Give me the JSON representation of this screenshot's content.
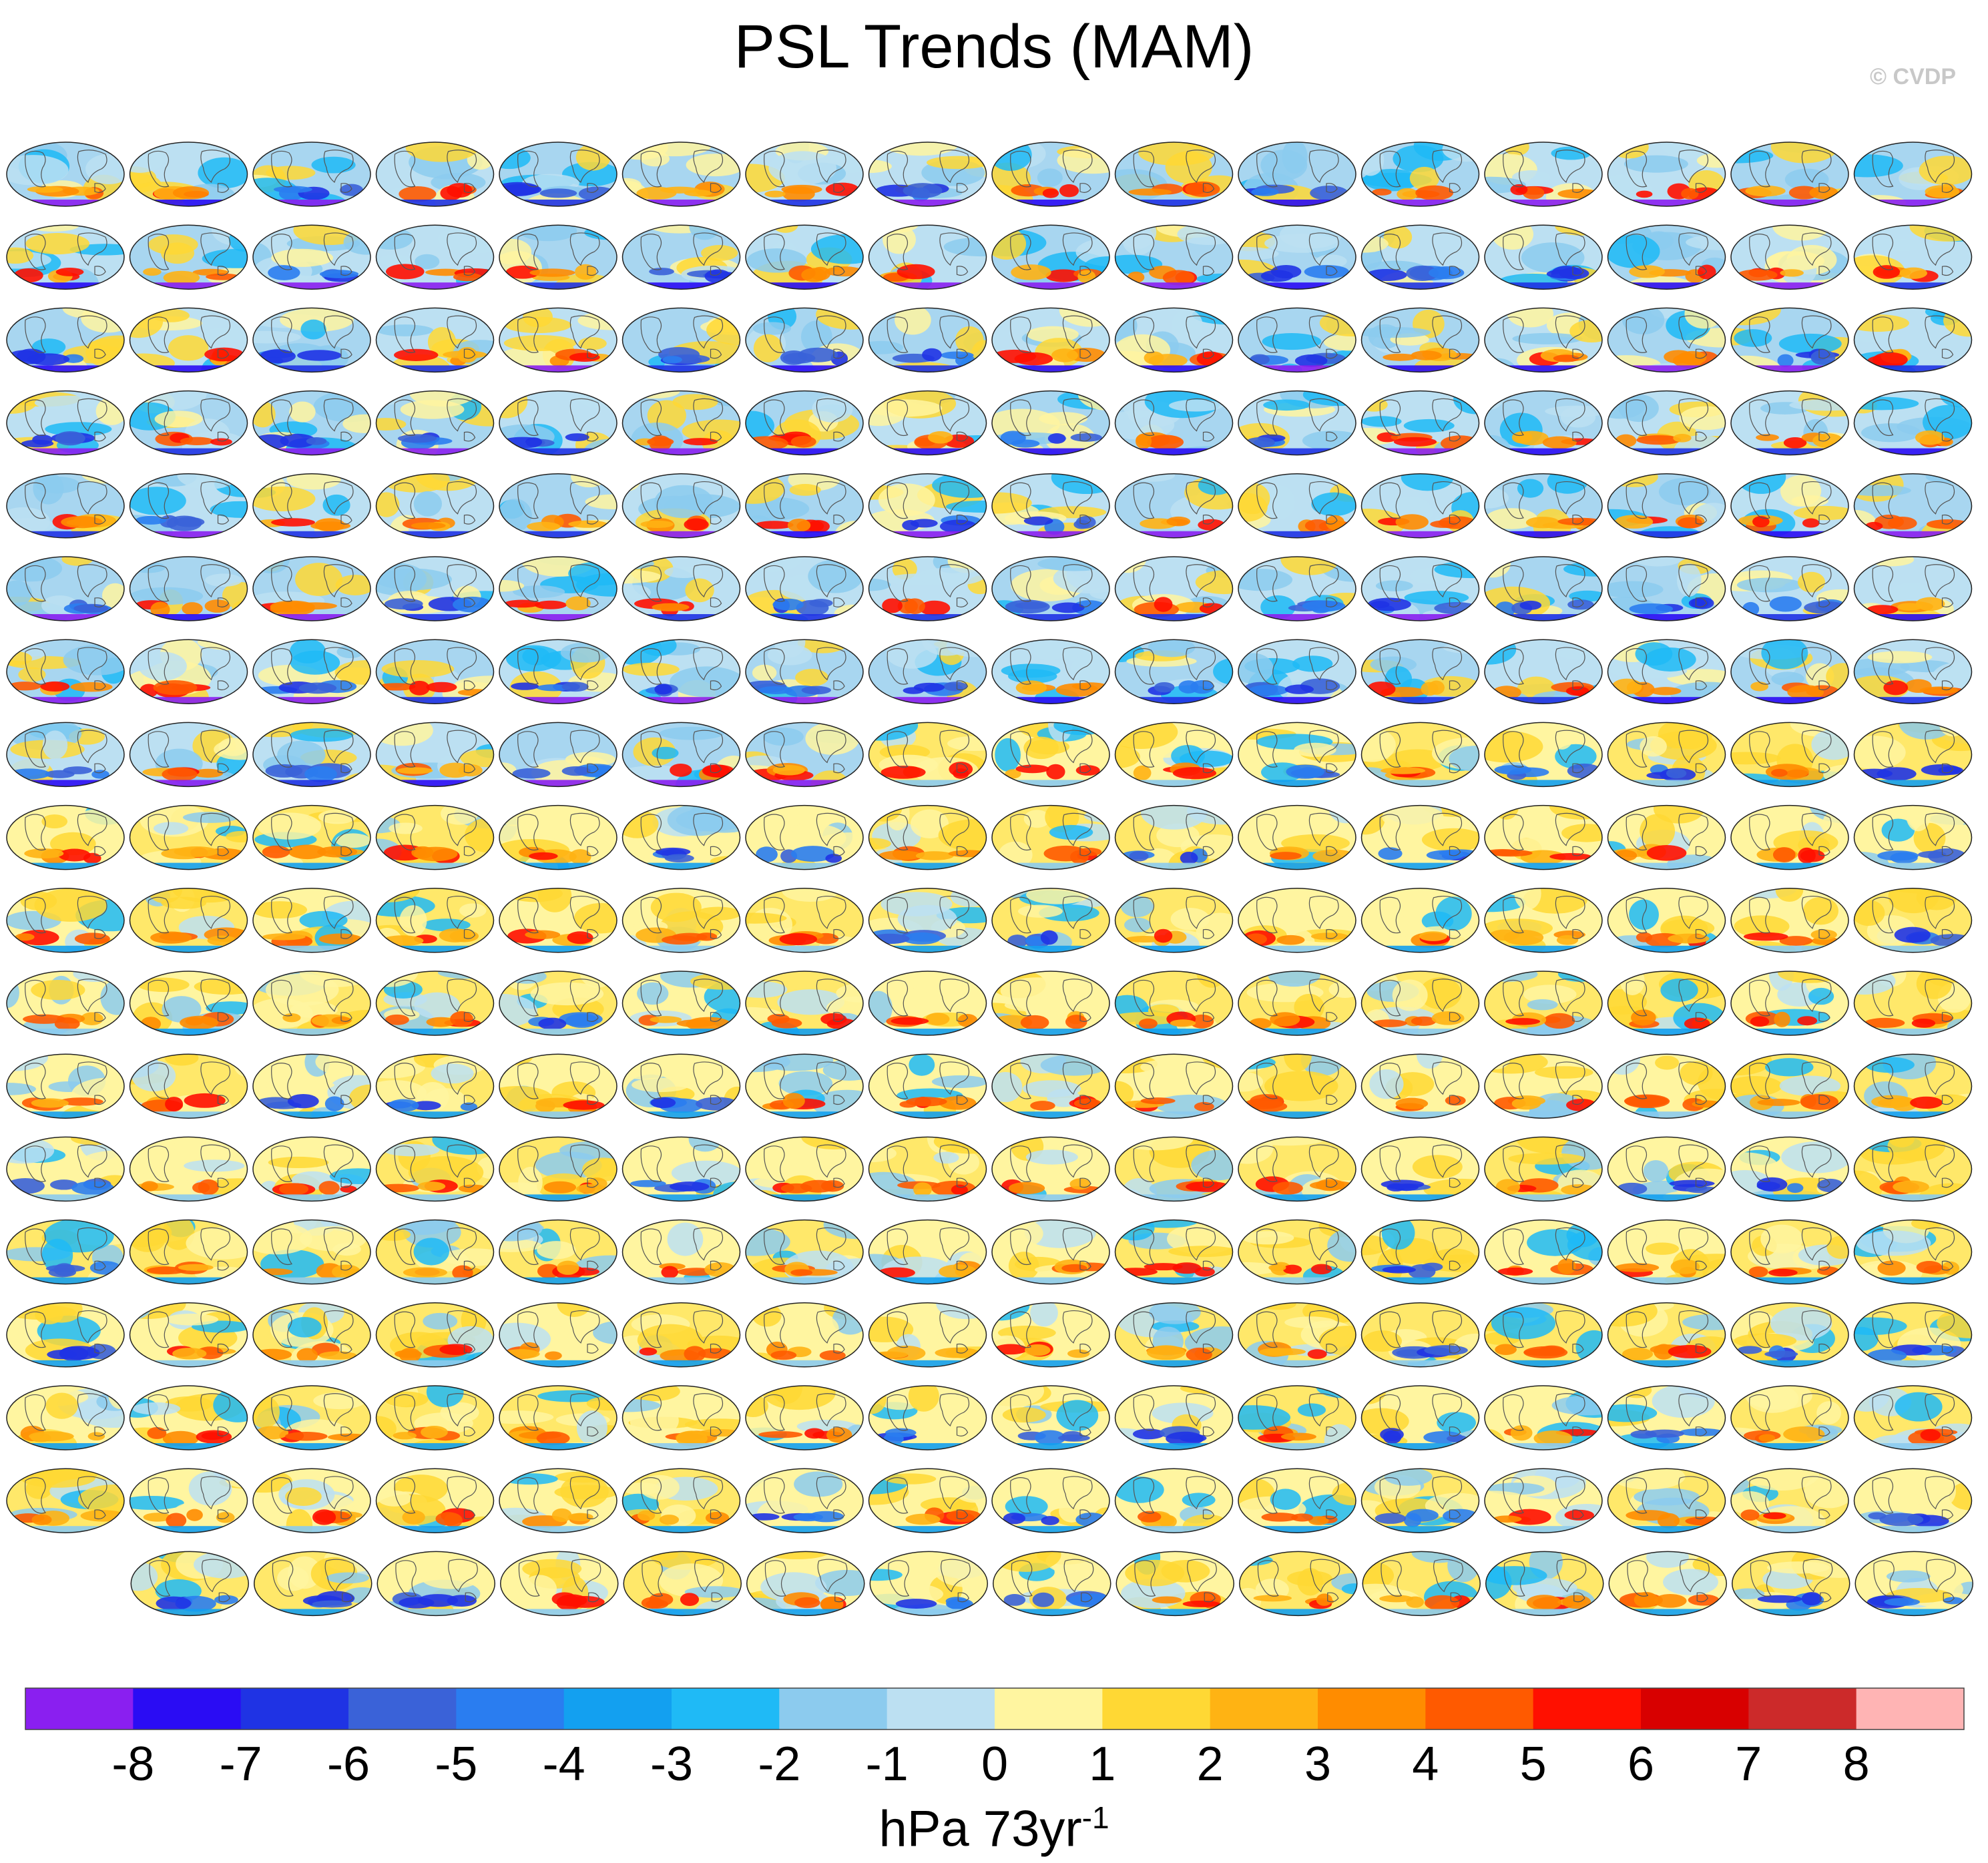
{
  "title": "PSL Trends (MAM)",
  "credit": "© CVDP",
  "chart_data": {
    "type": "heatmap",
    "panel_kind": "global map of sea level pressure trend (ensemble members)",
    "panel_grid": {
      "rows": 18,
      "columns": 16,
      "last_row_panels": 15
    },
    "colorbar": {
      "levels": [
        -8,
        -7,
        -6,
        -5,
        -4,
        -3,
        -2,
        -1,
        0,
        1,
        2,
        3,
        4,
        5,
        6,
        7,
        8
      ],
      "tick_labels": [
        "-8",
        "-7",
        "-6",
        "-5",
        "-4",
        "-3",
        "-2",
        "-1",
        "0",
        "1",
        "2",
        "3",
        "4",
        "5",
        "6",
        "7",
        "8"
      ],
      "colors": [
        "#8a1ff0",
        "#2a0cf4",
        "#1f33e4",
        "#3a62d8",
        "#2a7df0",
        "#13a0f0",
        "#1fbaf6",
        "#8ccbee",
        "#bce0f2",
        "#fff5a0",
        "#ffd834",
        "#ffb313",
        "#ff8c00",
        "#ff5a00",
        "#ff1000",
        "#d80000",
        "#cc2a2a",
        "#ffb4b4"
      ],
      "units": "hPa 73yr",
      "units_exponent": "-1"
    }
  }
}
